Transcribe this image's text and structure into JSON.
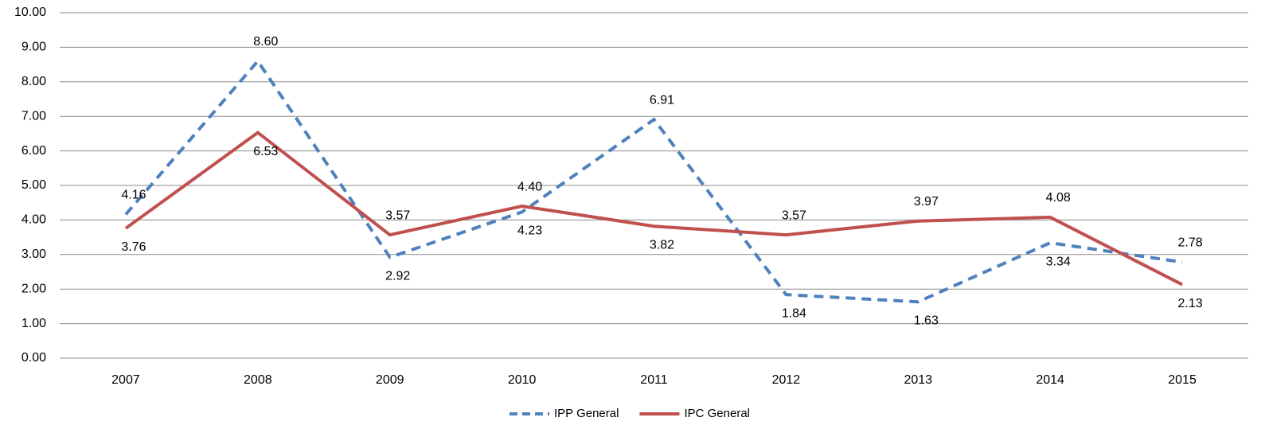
{
  "chart_data": {
    "type": "line",
    "categories": [
      "2007",
      "2008",
      "2009",
      "2010",
      "2011",
      "2012",
      "2013",
      "2014",
      "2015"
    ],
    "series": [
      {
        "name": "IPP General",
        "color": "#4f81bd",
        "dashed": true,
        "values": [
          4.16,
          8.6,
          2.92,
          4.23,
          6.91,
          1.84,
          1.63,
          3.34,
          2.78
        ],
        "value_labels": [
          "4.16",
          "8.60",
          "2.92",
          "4.23",
          "6.91",
          "1.84",
          "1.63",
          "3.34",
          "2.78"
        ]
      },
      {
        "name": "IPC General",
        "color": "#c0504d",
        "dashed": false,
        "values": [
          3.76,
          6.53,
          3.57,
          4.4,
          3.82,
          3.57,
          3.97,
          4.08,
          2.13
        ],
        "value_labels": [
          "3.76",
          "6.53",
          "3.57",
          "4.40",
          "3.82",
          "3.57",
          "3.97",
          "4.08",
          "2.13"
        ]
      }
    ],
    "ylim": [
      0,
      10
    ],
    "yticks": [
      {
        "value": 0,
        "label": "0.00"
      },
      {
        "value": 1,
        "label": "1.00"
      },
      {
        "value": 2,
        "label": "2.00"
      },
      {
        "value": 3,
        "label": "3.00"
      },
      {
        "value": 4,
        "label": "4.00"
      },
      {
        "value": 5,
        "label": "5.00"
      },
      {
        "value": 6,
        "label": "6.00"
      },
      {
        "value": 7,
        "label": "7.00"
      },
      {
        "value": 8,
        "label": "8.00"
      },
      {
        "value": 9,
        "label": "9.00"
      },
      {
        "value": 10,
        "label": "10.00"
      }
    ],
    "grid": true,
    "legend": "bottom"
  }
}
